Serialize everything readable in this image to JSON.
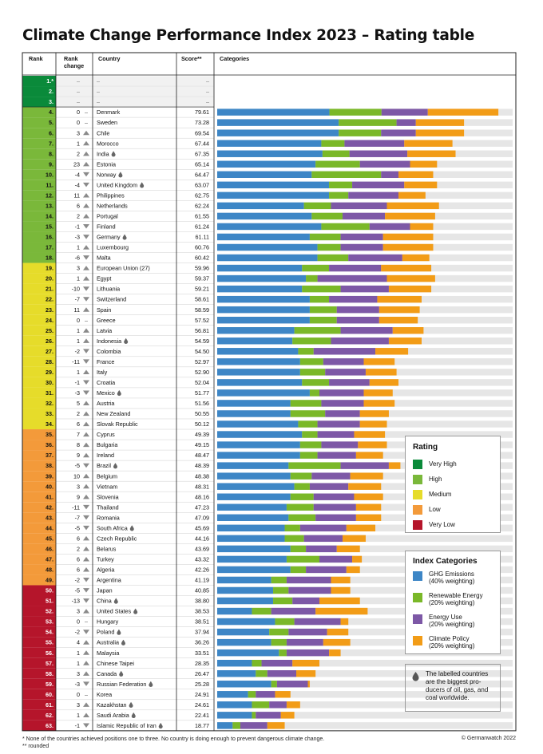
{
  "title": "Climate Change Performance Index 2023 – Rating table",
  "headers": {
    "rank": "Rank",
    "rank_change": "Rank change",
    "country": "Country",
    "score": "Score**",
    "categories": "Categories"
  },
  "colors": {
    "very_high": "#0a8a3a",
    "high": "#7ab83a",
    "medium": "#e6dc2a",
    "low": "#f39a3a",
    "very_low": "#b5152b",
    "ghg": "#3d86c6",
    "renewable": "#7ab828",
    "energy": "#7d58a6",
    "policy": "#f29c17",
    "bar_bg": "#e6e6e6"
  },
  "rating_legend": {
    "title": "Rating",
    "items": [
      {
        "label": "Very High",
        "color": "#0a8a3a"
      },
      {
        "label": "High",
        "color": "#7ab83a"
      },
      {
        "label": "Medium",
        "color": "#e6dc2a"
      },
      {
        "label": "Low",
        "color": "#f39a3a"
      },
      {
        "label": "Very Low",
        "color": "#b5152b"
      }
    ]
  },
  "category_legend": {
    "title": "Index Categories",
    "items": [
      {
        "line1": "GHG Emissions",
        "line2": "(40% weighting)",
        "color": "#3d86c6"
      },
      {
        "line1": "Renewable Energy",
        "line2": "(20% weighting)",
        "color": "#7ab828"
      },
      {
        "line1": "Energy Use",
        "line2": "(20% weighting)",
        "color": "#7d58a6"
      },
      {
        "line1": "Climate Policy",
        "line2": "(20% weighting)",
        "color": "#f29c17"
      }
    ]
  },
  "note": "The labelled countries are the biggest pro-ducers of oil, gas, and coal worldwide.",
  "footnote1": "* None of the countries achieved positions one to three. No country is doing enough to prevent dangerous climate change.",
  "footnote2": "** rounded",
  "copyright": "© Germanwatch 2022",
  "chart_data": {
    "type": "bar",
    "stacked": true,
    "orientation": "horizontal",
    "series_names": [
      "GHG Emissions",
      "Renewable Energy",
      "Energy Use",
      "Climate Policy"
    ],
    "empty_rows": [
      {
        "rank": "1.*",
        "change": "–",
        "country": "–",
        "score": "–",
        "rating": "very_high"
      },
      {
        "rank": "2.",
        "change": "–",
        "country": "–",
        "score": "–",
        "rating": "very_high"
      },
      {
        "rank": "3.",
        "change": "–",
        "country": "–",
        "score": "–",
        "rating": "very_high"
      }
    ],
    "rows": [
      {
        "rank": "4.",
        "change": "0",
        "dir": "none",
        "country": "Denmark",
        "producer": false,
        "score": "79.61",
        "rating": "high",
        "parts": [
          29.1,
          13.5,
          12.0,
          18.3
        ]
      },
      {
        "rank": "5.",
        "change": "0",
        "dir": "none",
        "country": "Sweden",
        "producer": false,
        "score": "73.28",
        "rating": "high",
        "parts": [
          31.5,
          15.0,
          5.0,
          12.5
        ]
      },
      {
        "rank": "6.",
        "change": "3",
        "dir": "up",
        "country": "Chile",
        "producer": false,
        "score": "69.54",
        "rating": "high",
        "parts": [
          31.5,
          11.0,
          9.0,
          12.5
        ]
      },
      {
        "rank": "7.",
        "change": "1",
        "dir": "up",
        "country": "Morocco",
        "producer": false,
        "score": "67.44",
        "rating": "high",
        "parts": [
          27.0,
          6.0,
          15.5,
          12.5
        ]
      },
      {
        "rank": "8.",
        "change": "2",
        "dir": "up",
        "country": "India",
        "producer": true,
        "score": "67.35",
        "rating": "high",
        "parts": [
          27.3,
          7.0,
          15.0,
          12.5
        ]
      },
      {
        "rank": "9.",
        "change": "23",
        "dir": "up",
        "country": "Estonia",
        "producer": false,
        "score": "65.14",
        "rating": "high",
        "parts": [
          25.5,
          11.5,
          13.0,
          7.0
        ]
      },
      {
        "rank": "10.",
        "change": "-4",
        "dir": "down",
        "country": "Norway",
        "producer": true,
        "score": "64.47",
        "rating": "high",
        "parts": [
          24.5,
          18.0,
          4.5,
          9.0
        ]
      },
      {
        "rank": "11.",
        "change": "-4",
        "dir": "down",
        "country": "United Kingdom",
        "producer": true,
        "score": "63.07",
        "rating": "high",
        "parts": [
          29.0,
          6.0,
          13.5,
          8.5
        ]
      },
      {
        "rank": "12.",
        "change": "11",
        "dir": "up",
        "country": "Philippines",
        "producer": false,
        "score": "62.75",
        "rating": "high",
        "parts": [
          29.0,
          5.0,
          13.0,
          7.0
        ]
      },
      {
        "rank": "13.",
        "change": "6",
        "dir": "up",
        "country": "Netherlands",
        "producer": false,
        "score": "62.24",
        "rating": "high",
        "parts": [
          22.5,
          7.0,
          14.5,
          13.5
        ]
      },
      {
        "rank": "14.",
        "change": "2",
        "dir": "up",
        "country": "Portugal",
        "producer": false,
        "score": "61.55",
        "rating": "high",
        "parts": [
          24.5,
          8.0,
          11.0,
          13.0
        ]
      },
      {
        "rank": "15.",
        "change": "-1",
        "dir": "down",
        "country": "Finland",
        "producer": false,
        "score": "61.24",
        "rating": "high",
        "parts": [
          27.0,
          12.5,
          10.5,
          6.0
        ]
      },
      {
        "rank": "16.",
        "change": "-3",
        "dir": "down",
        "country": "Germany",
        "producer": true,
        "score": "61.11",
        "rating": "high",
        "parts": [
          24.0,
          8.0,
          11.0,
          13.0
        ]
      },
      {
        "rank": "17.",
        "change": "1",
        "dir": "up",
        "country": "Luxembourg",
        "producer": false,
        "score": "60.76",
        "rating": "high",
        "parts": [
          26.0,
          6.0,
          11.0,
          13.0
        ]
      },
      {
        "rank": "18.",
        "change": "-6",
        "dir": "down",
        "country": "Malta",
        "producer": false,
        "score": "60.42",
        "rating": "high",
        "parts": [
          26.0,
          8.0,
          14.0,
          7.0
        ]
      },
      {
        "rank": "19.",
        "change": "3",
        "dir": "up",
        "country": "European Union (27)",
        "producer": false,
        "score": "59.96",
        "rating": "medium",
        "parts": [
          22.0,
          7.0,
          13.5,
          13.0
        ]
      },
      {
        "rank": "20.",
        "change": "1",
        "dir": "up",
        "country": "Egypt",
        "producer": false,
        "score": "59.37",
        "rating": "medium",
        "parts": [
          23.0,
          3.0,
          18.0,
          12.5
        ]
      },
      {
        "rank": "21.",
        "change": "-10",
        "dir": "down",
        "country": "Lithuania",
        "producer": false,
        "score": "59.21",
        "rating": "medium",
        "parts": [
          22.0,
          10.0,
          12.5,
          11.0
        ]
      },
      {
        "rank": "22.",
        "change": "-7",
        "dir": "down",
        "country": "Switzerland",
        "producer": false,
        "score": "58.61",
        "rating": "medium",
        "parts": [
          24.0,
          5.0,
          12.5,
          11.5
        ]
      },
      {
        "rank": "23.",
        "change": "11",
        "dir": "up",
        "country": "Spain",
        "producer": false,
        "score": "58.59",
        "rating": "medium",
        "parts": [
          24.0,
          7.0,
          11.0,
          10.5
        ]
      },
      {
        "rank": "24.",
        "change": "0",
        "dir": "none",
        "country": "Greece",
        "producer": false,
        "score": "57.52",
        "rating": "medium",
        "parts": [
          24.0,
          7.0,
          11.0,
          10.0
        ]
      },
      {
        "rank": "25.",
        "change": "1",
        "dir": "up",
        "country": "Latvia",
        "producer": false,
        "score": "56.81",
        "rating": "medium",
        "parts": [
          20.0,
          12.0,
          13.5,
          8.0
        ]
      },
      {
        "rank": "26.",
        "change": "1",
        "dir": "up",
        "country": "Indonesia",
        "producer": true,
        "score": "54.59",
        "rating": "medium",
        "parts": [
          19.5,
          10.0,
          15.0,
          8.5
        ]
      },
      {
        "rank": "27.",
        "change": "-2",
        "dir": "down",
        "country": "Colombia",
        "producer": false,
        "score": "54.50",
        "rating": "medium",
        "parts": [
          21.0,
          4.0,
          16.0,
          8.5
        ]
      },
      {
        "rank": "28.",
        "change": "-11",
        "dir": "down",
        "country": "France",
        "producer": false,
        "score": "52.97",
        "rating": "medium",
        "parts": [
          21.5,
          6.0,
          10.5,
          8.0
        ]
      },
      {
        "rank": "29.",
        "change": "1",
        "dir": "up",
        "country": "Italy",
        "producer": false,
        "score": "52.90",
        "rating": "medium",
        "parts": [
          21.5,
          6.5,
          10.5,
          8.0
        ]
      },
      {
        "rank": "30.",
        "change": "-1",
        "dir": "down",
        "country": "Croatia",
        "producer": false,
        "score": "52.04",
        "rating": "medium",
        "parts": [
          22.0,
          7.0,
          10.5,
          7.5
        ]
      },
      {
        "rank": "31.",
        "change": "-3",
        "dir": "down",
        "country": "Mexico",
        "producer": true,
        "score": "51.77",
        "rating": "medium",
        "parts": [
          24.0,
          2.5,
          11.5,
          7.5
        ]
      },
      {
        "rank": "32.",
        "change": "5",
        "dir": "up",
        "country": "Austria",
        "producer": false,
        "score": "51.56",
        "rating": "medium",
        "parts": [
          19.0,
          8.0,
          11.0,
          8.0
        ]
      },
      {
        "rank": "33.",
        "change": "2",
        "dir": "up",
        "country": "New Zealand",
        "producer": false,
        "score": "50.55",
        "rating": "medium",
        "parts": [
          19.0,
          9.0,
          9.0,
          7.5
        ]
      },
      {
        "rank": "34.",
        "change": "6",
        "dir": "up",
        "country": "Slovak Republic",
        "producer": false,
        "score": "50.12",
        "rating": "medium",
        "parts": [
          21.0,
          5.0,
          11.0,
          7.0
        ]
      },
      {
        "rank": "35.",
        "change": "7",
        "dir": "up",
        "country": "Cyprus",
        "producer": false,
        "score": "49.39",
        "rating": "low",
        "parts": [
          22.0,
          4.0,
          9.5,
          8.0
        ]
      },
      {
        "rank": "36.",
        "change": "8",
        "dir": "up",
        "country": "Bulgaria",
        "producer": false,
        "score": "49.15",
        "rating": "low",
        "parts": [
          21.5,
          5.5,
          9.5,
          7.5
        ]
      },
      {
        "rank": "37.",
        "change": "9",
        "dir": "up",
        "country": "Ireland",
        "producer": false,
        "score": "48.47",
        "rating": "low",
        "parts": [
          21.5,
          4.5,
          10.0,
          7.0
        ]
      },
      {
        "rank": "38.",
        "change": "-5",
        "dir": "down",
        "country": "Brazil",
        "producer": true,
        "score": "48.39",
        "rating": "low",
        "parts": [
          18.5,
          13.5,
          12.5,
          3.0
        ]
      },
      {
        "rank": "39.",
        "change": "10",
        "dir": "up",
        "country": "Belgium",
        "producer": false,
        "score": "48.38",
        "rating": "low",
        "parts": [
          19.0,
          5.5,
          10.0,
          8.5
        ]
      },
      {
        "rank": "40.",
        "change": "3",
        "dir": "up",
        "country": "Vietnam",
        "producer": false,
        "score": "48.31",
        "rating": "low",
        "parts": [
          20.0,
          4.0,
          10.0,
          8.5
        ]
      },
      {
        "rank": "41.",
        "change": "9",
        "dir": "up",
        "country": "Slovenia",
        "producer": false,
        "score": "48.16",
        "rating": "low",
        "parts": [
          19.0,
          6.0,
          10.5,
          7.5
        ]
      },
      {
        "rank": "42.",
        "change": "-11",
        "dir": "down",
        "country": "Thailand",
        "producer": false,
        "score": "47.23",
        "rating": "low",
        "parts": [
          18.0,
          7.0,
          11.0,
          6.5
        ]
      },
      {
        "rank": "43.",
        "change": "-7",
        "dir": "down",
        "country": "Romania",
        "producer": false,
        "score": "47.09",
        "rating": "low",
        "parts": [
          18.5,
          7.0,
          10.5,
          6.5
        ]
      },
      {
        "rank": "44.",
        "change": "-5",
        "dir": "down",
        "country": "South Africa",
        "producer": true,
        "score": "45.69",
        "rating": "low",
        "parts": [
          17.5,
          4.0,
          12.0,
          7.5
        ]
      },
      {
        "rank": "45.",
        "change": "6",
        "dir": "up",
        "country": "Czech Republic",
        "producer": false,
        "score": "44.16",
        "rating": "low",
        "parts": [
          17.5,
          5.0,
          10.0,
          6.0
        ]
      },
      {
        "rank": "46.",
        "change": "2",
        "dir": "up",
        "country": "Belarus",
        "producer": false,
        "score": "43.69",
        "rating": "low",
        "parts": [
          19.0,
          4.0,
          8.0,
          6.0
        ]
      },
      {
        "rank": "47.",
        "change": "6",
        "dir": "up",
        "country": "Turkey",
        "producer": false,
        "score": "43.32",
        "rating": "low",
        "parts": [
          18.0,
          8.5,
          8.5,
          2.5
        ]
      },
      {
        "rank": "48.",
        "change": "6",
        "dir": "up",
        "country": "Algeria",
        "producer": false,
        "score": "42.26",
        "rating": "low",
        "parts": [
          19.0,
          4.0,
          10.5,
          3.5
        ]
      },
      {
        "rank": "49.",
        "change": "-2",
        "dir": "down",
        "country": "Argentina",
        "producer": false,
        "score": "41.19",
        "rating": "low",
        "parts": [
          14.0,
          4.0,
          11.5,
          5.0
        ]
      },
      {
        "rank": "50.",
        "change": "-5",
        "dir": "down",
        "country": "Japan",
        "producer": false,
        "score": "40.85",
        "rating": "very_low",
        "parts": [
          14.5,
          4.0,
          11.0,
          5.0
        ]
      },
      {
        "rank": "51.",
        "change": "-13",
        "dir": "down",
        "country": "China",
        "producer": true,
        "score": "38.80",
        "rating": "very_low",
        "parts": [
          14.5,
          5.0,
          7.0,
          10.5
        ]
      },
      {
        "rank": "52.",
        "change": "3",
        "dir": "up",
        "country": "United States",
        "producer": true,
        "score": "38.53",
        "rating": "very_low",
        "parts": [
          9.0,
          5.0,
          11.5,
          13.5
        ]
      },
      {
        "rank": "53.",
        "change": "0",
        "dir": "none",
        "country": "Hungary",
        "producer": false,
        "score": "38.51",
        "rating": "very_low",
        "parts": [
          15.0,
          5.0,
          12.0,
          2.0
        ]
      },
      {
        "rank": "54.",
        "change": "-2",
        "dir": "down",
        "country": "Poland",
        "producer": true,
        "score": "37.94",
        "rating": "very_low",
        "parts": [
          13.5,
          5.0,
          10.0,
          5.5
        ]
      },
      {
        "rank": "55.",
        "change": "4",
        "dir": "up",
        "country": "Australia",
        "producer": true,
        "score": "36.26",
        "rating": "very_low",
        "parts": [
          14.0,
          4.0,
          9.5,
          7.0
        ]
      },
      {
        "rank": "56.",
        "change": "1",
        "dir": "up",
        "country": "Malaysia",
        "producer": false,
        "score": "33.51",
        "rating": "very_low",
        "parts": [
          16.0,
          2.0,
          11.0,
          3.0
        ]
      },
      {
        "rank": "57.",
        "change": "1",
        "dir": "up",
        "country": "Chinese Taipei",
        "producer": false,
        "score": "28.35",
        "rating": "very_low",
        "parts": [
          9.0,
          2.5,
          8.0,
          7.0
        ]
      },
      {
        "rank": "58.",
        "change": "3",
        "dir": "up",
        "country": "Canada",
        "producer": true,
        "score": "26.47",
        "rating": "very_low",
        "parts": [
          10.0,
          3.0,
          7.5,
          5.0
        ]
      },
      {
        "rank": "59.",
        "change": "-3",
        "dir": "down",
        "country": "Russian Federation",
        "producer": true,
        "score": "25.28",
        "rating": "very_low",
        "parts": [
          14.0,
          1.5,
          8.0,
          0.5
        ]
      },
      {
        "rank": "60.",
        "change": "0",
        "dir": "none",
        "country": "Korea",
        "producer": false,
        "score": "24.91",
        "rating": "very_low",
        "parts": [
          8.0,
          2.0,
          5.0,
          4.0
        ]
      },
      {
        "rank": "61.",
        "change": "3",
        "dir": "up",
        "country": "Kazakhstan",
        "producer": true,
        "score": "24.61",
        "rating": "very_low",
        "parts": [
          9.0,
          4.5,
          4.5,
          3.5
        ]
      },
      {
        "rank": "62.",
        "change": "1",
        "dir": "up",
        "country": "Saudi Arabia",
        "producer": true,
        "score": "22.41",
        "rating": "very_low",
        "parts": [
          9.0,
          1.0,
          6.5,
          3.5
        ]
      },
      {
        "rank": "63.",
        "change": "-1",
        "dir": "down",
        "country": "Islamic Republic of Iran",
        "producer": true,
        "score": "18.77",
        "rating": "very_low",
        "parts": [
          4.0,
          2.0,
          7.0,
          4.5
        ]
      }
    ]
  }
}
